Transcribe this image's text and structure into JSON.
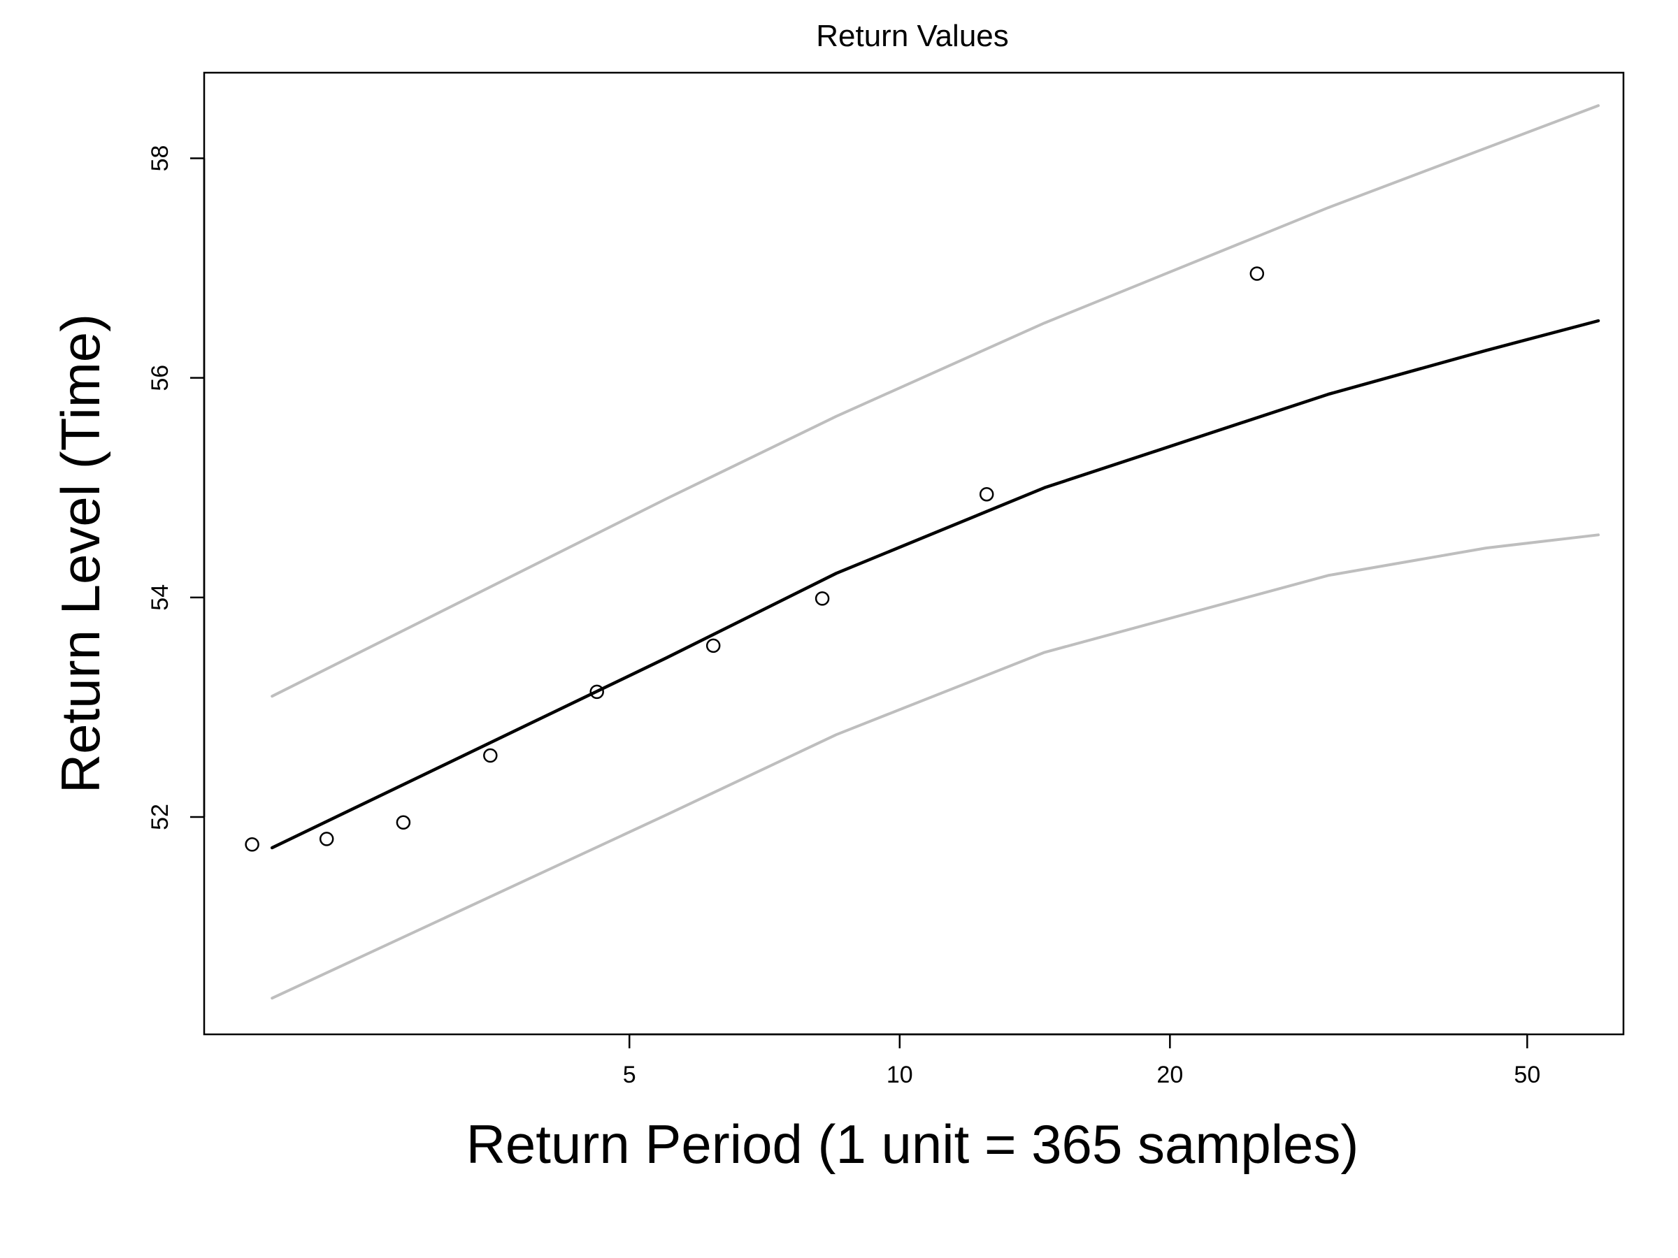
{
  "chart_data": {
    "type": "line",
    "title": "Return Values",
    "xlabel": "Return Period (1 unit = 365 samples)",
    "ylabel": "Return Level (Time)",
    "x_scale": "log",
    "xlim": [
      1.68,
      64
    ],
    "ylim": [
      50.02,
      58.78
    ],
    "x_ticks": [
      5,
      10,
      20,
      50
    ],
    "y_ticks": [
      52,
      54,
      56,
      58
    ],
    "grid": false,
    "legend": "none",
    "series": [
      {
        "role": "estimate",
        "color": "#000000",
        "points": [
          [
            2.0,
            51.72
          ],
          [
            5.5,
            53.45
          ],
          [
            8.5,
            54.22
          ],
          [
            14.5,
            55.0
          ],
          [
            30.0,
            55.85
          ],
          [
            45.0,
            56.25
          ],
          [
            60.0,
            56.52
          ]
        ]
      },
      {
        "role": "upper-bound",
        "color": "#bebebe",
        "points": [
          [
            2.0,
            53.1
          ],
          [
            5.5,
            54.9
          ],
          [
            8.5,
            55.65
          ],
          [
            14.5,
            56.5
          ],
          [
            30.0,
            57.55
          ],
          [
            60.0,
            58.48
          ]
        ]
      },
      {
        "role": "lower-bound",
        "color": "#bebebe",
        "points": [
          [
            2.0,
            50.35
          ],
          [
            5.5,
            52.02
          ],
          [
            8.5,
            52.75
          ],
          [
            14.5,
            53.5
          ],
          [
            30.0,
            54.2
          ],
          [
            45.0,
            54.45
          ],
          [
            60.0,
            54.57
          ]
        ]
      }
    ],
    "observed_points": [
      [
        1.9,
        51.75
      ],
      [
        2.3,
        51.8
      ],
      [
        2.8,
        51.95
      ],
      [
        3.5,
        52.56
      ],
      [
        4.6,
        53.14
      ],
      [
        6.2,
        53.56
      ],
      [
        8.2,
        53.99
      ],
      [
        12.5,
        54.94
      ],
      [
        25.0,
        56.95
      ]
    ]
  }
}
